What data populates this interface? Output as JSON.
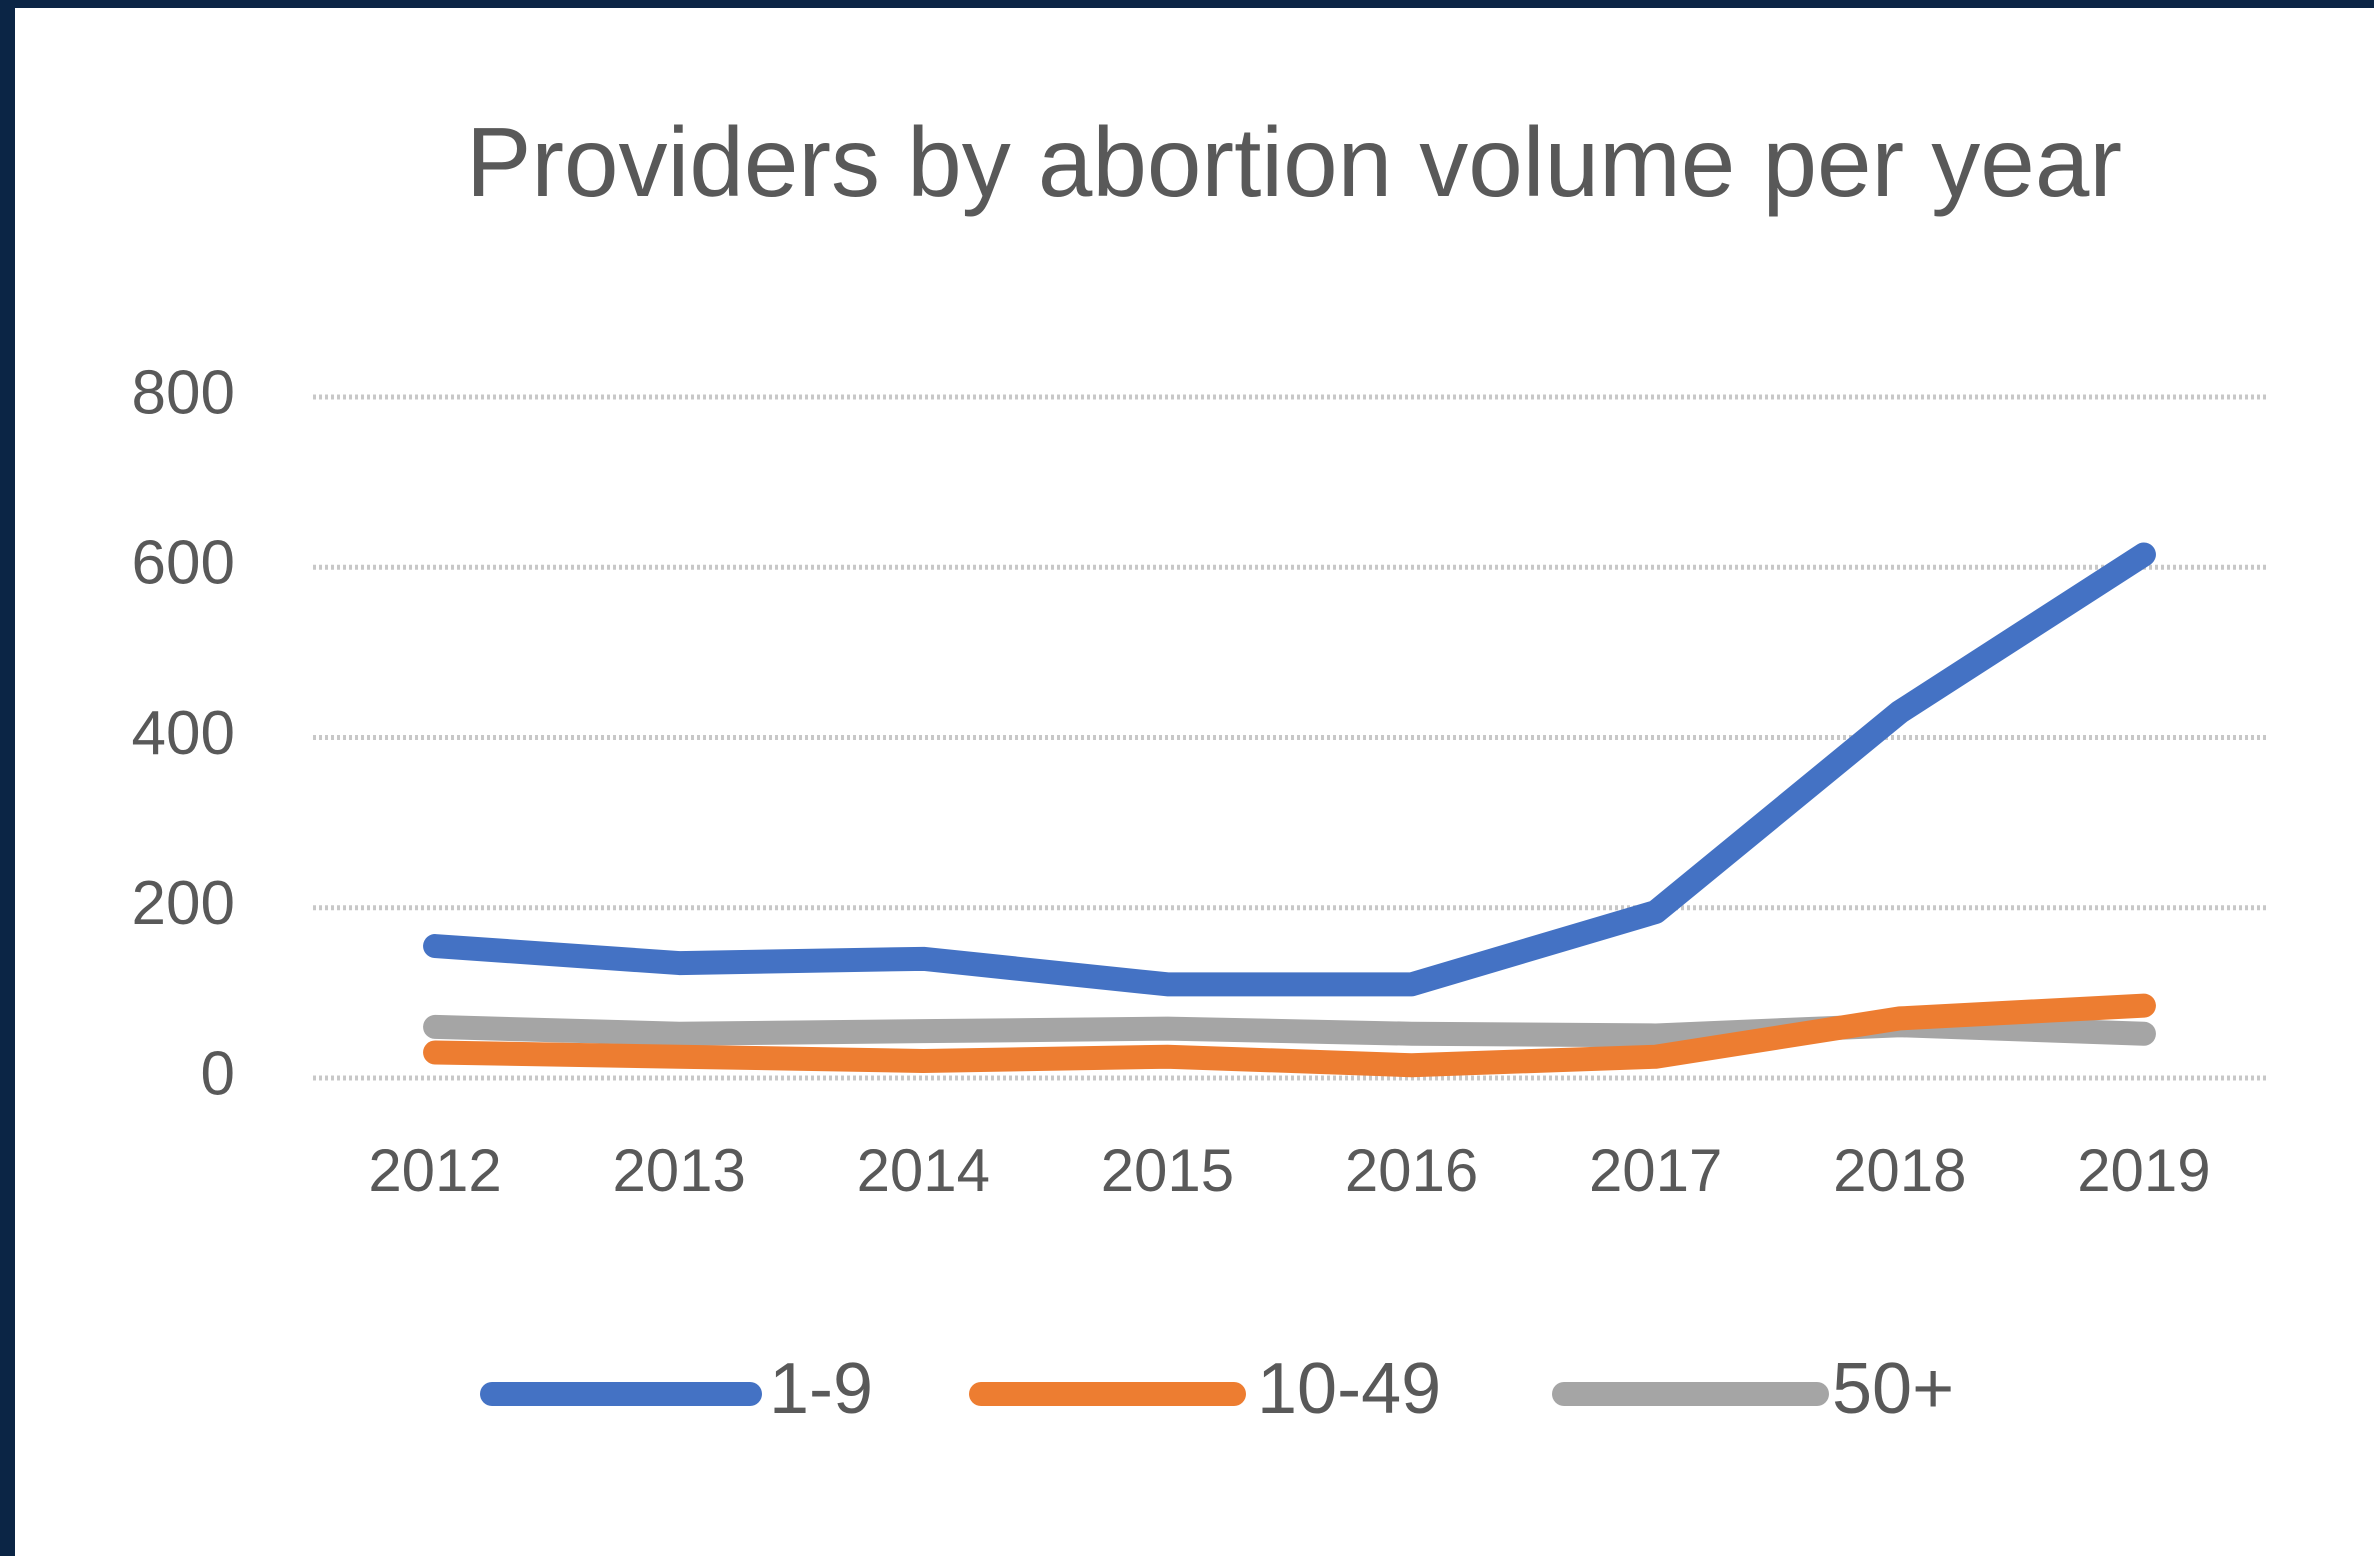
{
  "chart_data": {
    "type": "line",
    "title": "Providers by abortion volume per year",
    "categories": [
      "2012",
      "2013",
      "2014",
      "2015",
      "2016",
      "2017",
      "2018",
      "2019"
    ],
    "series": [
      {
        "name": "1-9",
        "color": "#4472c4",
        "values": [
          155,
          135,
          140,
          110,
          110,
          195,
          430,
          615
        ]
      },
      {
        "name": "10-49",
        "color": "#ed7d31",
        "values": [
          30,
          25,
          20,
          25,
          15,
          25,
          70,
          85
        ]
      },
      {
        "name": "50+",
        "color": "#a5a5a5",
        "values": [
          60,
          52,
          55,
          58,
          52,
          50,
          62,
          52
        ]
      }
    ],
    "ylim": [
      0,
      800
    ],
    "yticks": [
      0,
      200,
      400,
      600,
      800
    ],
    "grid": true,
    "legend": "bottom"
  }
}
